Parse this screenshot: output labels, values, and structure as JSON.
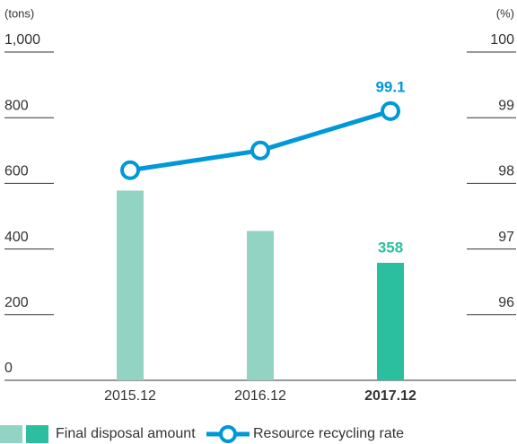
{
  "chart_data": {
    "type": "bar",
    "ylabel": "(tons)",
    "y2label": "(%)",
    "categories": [
      "2015.12",
      "2016.12",
      "2017.12"
    ],
    "highlight_index": 2,
    "series": [
      {
        "name": "Final disposal amount",
        "type": "bar",
        "colors": [
          "#93d3c4",
          "#93d3c4",
          "#2bbfa0"
        ],
        "color": "#2bbfa0",
        "legend_colors": [
          "#93d3c4",
          "#2bbfa0"
        ],
        "values": [
          578,
          455,
          358
        ]
      },
      {
        "name": "Resource recycling rate",
        "type": "line",
        "axis": "y2",
        "color": "#0098d8",
        "values": [
          98.2,
          98.5,
          99.1
        ]
      }
    ],
    "ylim": [
      0,
      1000
    ],
    "yticks": [
      0,
      200,
      400,
      600,
      800,
      {
        "value": 1000,
        "label": "1,000"
      }
    ],
    "y2lim": [
      95,
      100
    ],
    "y2ticks": [
      96,
      97,
      98,
      99,
      100
    ]
  }
}
